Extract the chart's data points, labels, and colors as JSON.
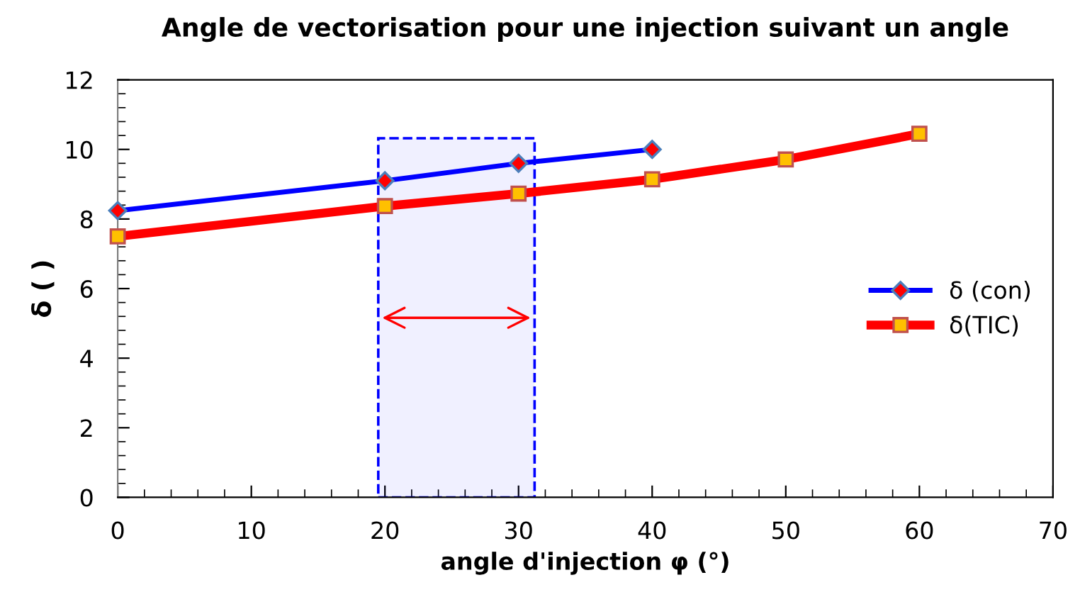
{
  "chart_data": {
    "type": "line",
    "title": "Angle de vectorisation pour une injection suivant un angle",
    "xlabel": "angle d'injection φ (°)",
    "ylabel": "δ ( )",
    "xlim": [
      0,
      70
    ],
    "xticks": [
      0,
      10,
      20,
      30,
      40,
      50,
      60,
      70
    ],
    "ylim": [
      0,
      12
    ],
    "yticks": [
      0,
      2,
      4,
      6,
      8,
      10,
      12
    ],
    "grid": false,
    "legend": "right",
    "series": [
      {
        "name": "δ (con)",
        "color": "#0000ff",
        "marker": "diamond",
        "x": [
          0,
          20,
          30,
          40
        ],
        "values": [
          8.24,
          9.1,
          9.6,
          10.0
        ]
      },
      {
        "name": "δ(TIC)",
        "color": "#ff0000",
        "marker": "square",
        "x": [
          0,
          20,
          30,
          40,
          50,
          60
        ],
        "values": [
          7.5,
          8.37,
          8.73,
          9.14,
          9.71,
          10.45
        ]
      }
    ],
    "bands": [
      {
        "axis": "x",
        "from": 19.5,
        "to": 31.2,
        "color": "#0000ff"
      }
    ]
  }
}
